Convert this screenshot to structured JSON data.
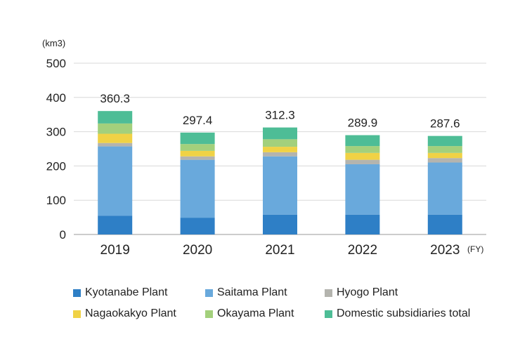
{
  "chart_data": {
    "type": "bar",
    "stacked": true,
    "unit": "(km3)",
    "x_suffix": "(FY)",
    "categories": [
      "2019",
      "2020",
      "2021",
      "2022",
      "2023"
    ],
    "totals": [
      "360.3",
      "297.4",
      "312.3",
      "289.9",
      "287.6"
    ],
    "ylim": [
      0,
      500
    ],
    "yticks": [
      0,
      100,
      200,
      300,
      400,
      500
    ],
    "grid": true,
    "legend_position": "bottom",
    "series": [
      {
        "name": "Kyotanabe Plant",
        "color": "#2e7fc6",
        "values": [
          55,
          49,
          58,
          58,
          58
        ]
      },
      {
        "name": "Saitama Plant",
        "color": "#69a9dc",
        "values": [
          202,
          169,
          170,
          147,
          152
        ]
      },
      {
        "name": "Hyogo Plant",
        "color": "#b4b4ae",
        "values": [
          10,
          10,
          12,
          13,
          13
        ]
      },
      {
        "name": "Nagaokakyo Plant",
        "color": "#f0d245",
        "values": [
          27,
          16,
          16,
          20,
          15
        ]
      },
      {
        "name": "Okayama Plant",
        "color": "#a3d07c",
        "values": [
          30,
          20,
          22,
          20,
          20
        ]
      },
      {
        "name": "Domestic subsidiaries total",
        "color": "#4ebd96",
        "values": [
          36.3,
          33.4,
          34.3,
          31.9,
          29.6
        ]
      }
    ]
  },
  "legend": {
    "rows": [
      [
        0,
        1,
        2
      ],
      [
        3,
        4,
        5
      ]
    ]
  }
}
